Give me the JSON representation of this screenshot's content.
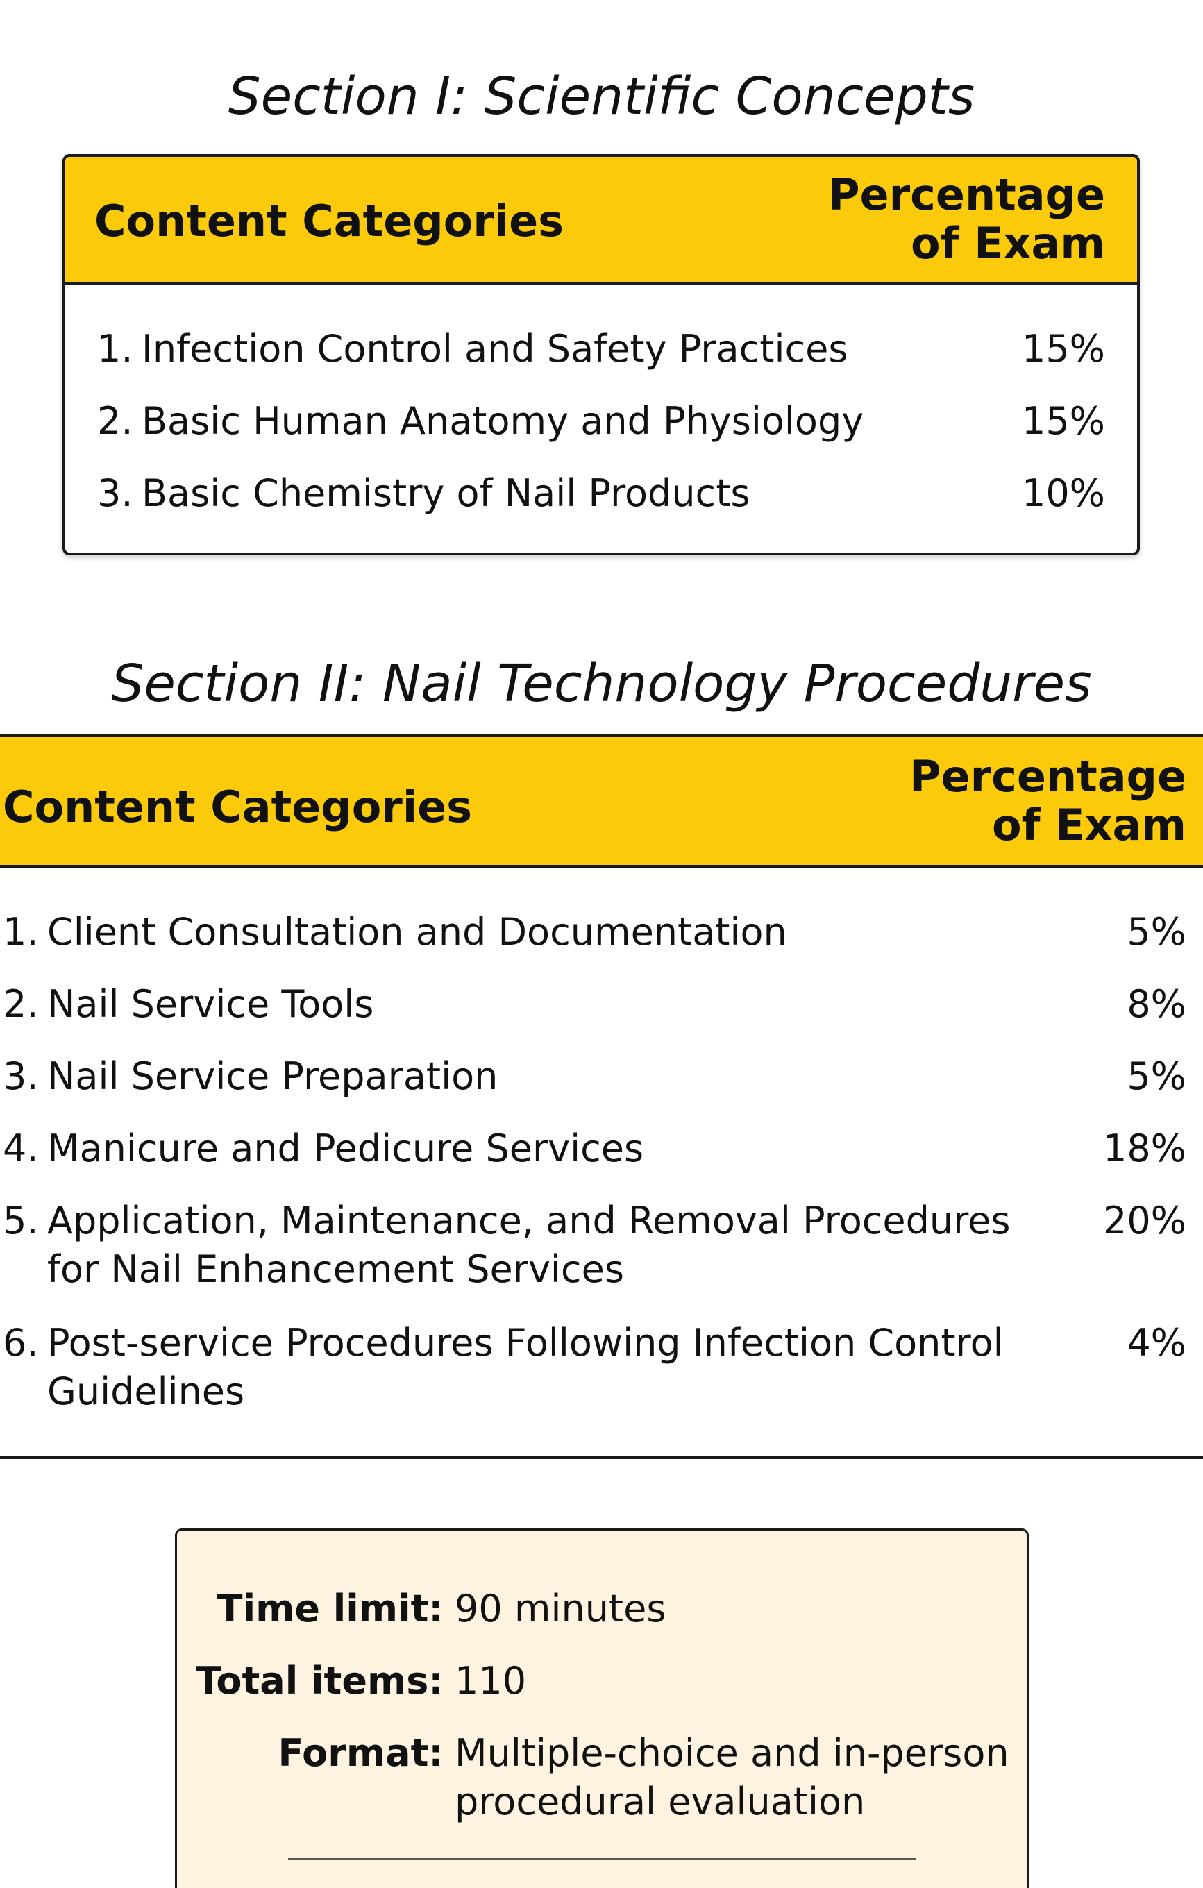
{
  "section1": {
    "title": "Section I: Scientific Concepts",
    "header": {
      "left": "Content Categories",
      "right_line1": "Percentage",
      "right_line2": "of Exam"
    },
    "rows": [
      {
        "num": "1.",
        "label": "Infection Control and Safety Practices",
        "value": "15%"
      },
      {
        "num": "2.",
        "label": "Basic Human Anatomy and Physiology",
        "value": "15%"
      },
      {
        "num": "3.",
        "label": "Basic Chemistry of Nail Products",
        "value": "10%"
      }
    ]
  },
  "section2": {
    "title": "Section II: Nail Technology Procedures",
    "header": {
      "left": "Content Categories",
      "right_line1": "Percentage",
      "right_line2": "of Exam"
    },
    "rows": [
      {
        "num": "1.",
        "label_line1": "Client Consultation and Documentation",
        "value": "5%"
      },
      {
        "num": "2.",
        "label_line1": "Nail Service Tools",
        "value": "8%"
      },
      {
        "num": "3.",
        "label_line1": "Nail Service Preparation",
        "value": "5%"
      },
      {
        "num": "4.",
        "label_line1": "Manicure and Pedicure Services",
        "value": "18%"
      },
      {
        "num": "5.",
        "label_line1": "Application, Maintenance, and Removal Procedures",
        "label_line2": "for Nail Enhancement Services",
        "value": "20%"
      },
      {
        "num": "6.",
        "label_line1": "Post-service Procedures Following Infection Control",
        "label_line2": "Guidelines",
        "value": "4%"
      }
    ]
  },
  "info": {
    "time_limit_label": "Time limit:",
    "time_limit_value": "90 minutes",
    "total_items_label": "Total items:",
    "total_items_value": "110",
    "format_label": "Format:",
    "format_value_line1": "Multiple-choice and in-person",
    "format_value_line2": "procedural evaluation"
  }
}
